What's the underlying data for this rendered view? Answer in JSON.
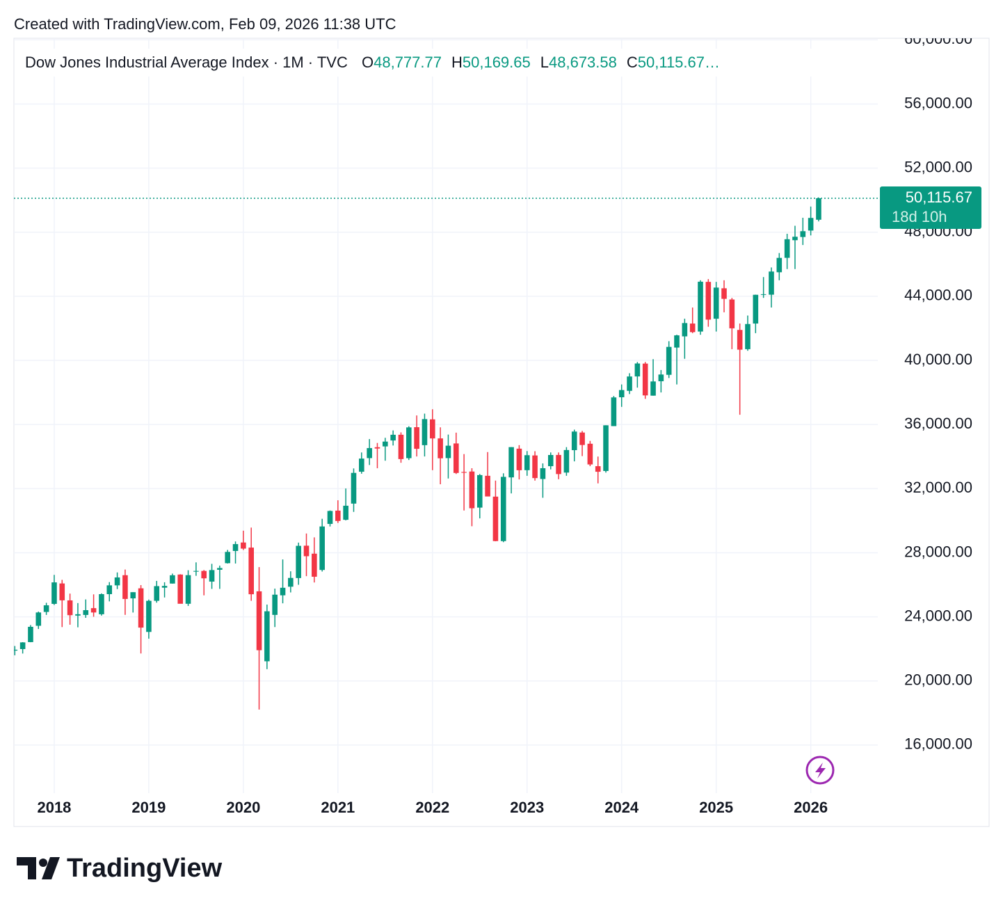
{
  "chart_data": {
    "type": "candlestick",
    "credit": "Created with TradingView.com, Feb 09, 2026 11:38 UTC",
    "title": "Dow Jones Industrial Average Index · 1M · TVC",
    "ohlc_legend": [
      {
        "prefix": "O",
        "value": "48,777.77"
      },
      {
        "prefix": "H",
        "value": "50,169.65"
      },
      {
        "prefix": "L",
        "value": "48,673.58"
      },
      {
        "prefix": "C",
        "value": "50,115.67…"
      }
    ],
    "categories": [
      null,
      null,
      null,
      null,
      null,
      "2018",
      null,
      null,
      null,
      null,
      null,
      null,
      null,
      null,
      null,
      null,
      null,
      "2019",
      null,
      null,
      null,
      null,
      null,
      null,
      null,
      null,
      null,
      null,
      null,
      "2020",
      null,
      null,
      null,
      null,
      null,
      null,
      null,
      null,
      null,
      null,
      null,
      "2021",
      null,
      null,
      null,
      null,
      null,
      null,
      null,
      null,
      null,
      null,
      null,
      "2022",
      null,
      null,
      null,
      null,
      null,
      null,
      null,
      null,
      null,
      null,
      null,
      "2023",
      null,
      null,
      null,
      null,
      null,
      null,
      null,
      null,
      null,
      null,
      null,
      "2024",
      null,
      null,
      null,
      null,
      null,
      null,
      null,
      null,
      null,
      null,
      null,
      "2025",
      null,
      null,
      null,
      null,
      null,
      null,
      null,
      null,
      null,
      null,
      null,
      "2026",
      null
    ],
    "series": [
      {
        "up_color": "#089981",
        "down_color": "#f23645",
        "open": [
          21891,
          21988,
          22423,
          23442,
          24305,
          24809,
          26083,
          25025,
          24076,
          24117,
          24542,
          24161,
          25415,
          25964,
          26598,
          25152,
          25779,
          23058,
          24999,
          25819,
          26076,
          26639,
          24815,
          26818,
          26864,
          26198,
          26937,
          27347,
          28109,
          28638,
          28320,
          25591,
          21227,
          24120,
          25342,
          25880,
          26420,
          28439,
          27941,
          26925,
          29798,
          30627,
          30055,
          31065,
          33054,
          33904,
          34584,
          34634,
          35003,
          35361,
          33900,
          35833,
          34711,
          36321,
          35133,
          33904,
          34818,
          33040,
          33067,
          30815,
          32800,
          31500,
          28725,
          32700,
          34493,
          33150,
          34070,
          32600,
          33400,
          34100,
          33000,
          34400,
          35500,
          34800,
          33400,
          33100,
          35900,
          37700,
          38100,
          39000,
          39800,
          37800,
          38700,
          39100,
          40800,
          41500,
          42300,
          41800,
          44900,
          42600,
          44500,
          43800,
          41900,
          40700,
          42300,
          44100,
          44100,
          45500,
          46400,
          47500,
          47700,
          48100,
          48777.77
        ],
        "high": [
          22180,
          22420,
          23485,
          24327,
          24876,
          26617,
          26307,
          25449,
          24858,
          25086,
          25403,
          25462,
          26167,
          26770,
          26951,
          25538,
          25980,
          25076,
          26242,
          26156,
          26696,
          26658,
          26907,
          27398,
          26919,
          27306,
          27196,
          28175,
          28702,
          29374,
          29568,
          27102,
          24765,
          25759,
          27580,
          26841,
          28630,
          29199,
          28958,
          30117,
          30637,
          31272,
          32009,
          33260,
          34256,
          35091,
          34849,
          35171,
          35631,
          35510,
          35892,
          36565,
          36679,
          36952,
          35824,
          35372,
          35492,
          34155,
          33272,
          32910,
          34281,
          32500,
          32955,
          34590,
          34712,
          34342,
          34334,
          33572,
          34257,
          34257,
          34588,
          35679,
          35600,
          34977,
          34000,
          35950,
          37778,
          38500,
          39200,
          39900,
          39900,
          40077,
          39400,
          41198,
          41600,
          42600,
          43300,
          45000,
          45073,
          44900,
          45000,
          43900,
          42300,
          42800,
          44100,
          45200,
          45800,
          46700,
          47900,
          48400,
          48900,
          49600,
          50169.65
        ],
        "low": [
          21600,
          21709,
          22416,
          23242,
          24118,
          24741,
          23360,
          23509,
          23345,
          23938,
          24006,
          24077,
          24965,
          25731,
          24122,
          24268,
          21713,
          22638,
          24883,
          25208,
          26072,
          24924,
          24680,
          26558,
          25340,
          25743,
          25744,
          27325,
          27325,
          28170,
          25000,
          18214,
          20735,
          23361,
          24843,
          25523,
          26000,
          26538,
          26143,
          26826,
          29638,
          29856,
          30017,
          30547,
          32930,
          33473,
          33271,
          33741,
          34690,
          33613,
          33785,
          34006,
          34006,
          33150,
          32272,
          32632,
          32913,
          30635,
          29653,
          30143,
          31765,
          28715,
          28660,
          31700,
          32573,
          32800,
          32500,
          31429,
          33200,
          32586,
          32800,
          33700,
          34029,
          33400,
          32327,
          33000,
          35900,
          37100,
          37900,
          38300,
          37600,
          37800,
          38000,
          38900,
          38500,
          40100,
          41700,
          41600,
          42100,
          41800,
          43000,
          40700,
          36612,
          40600,
          41700,
          43900,
          43300,
          45000,
          45700,
          45700,
          47200,
          47800,
          48673.58
        ],
        "close": [
          21948,
          22405,
          23377,
          24272,
          24719,
          26149,
          25029,
          24103,
          24163,
          24416,
          24271,
          25415,
          25965,
          26458,
          25116,
          25538,
          23327,
          24999,
          25916,
          25929,
          26593,
          24815,
          26600,
          26864,
          26403,
          26917,
          27046,
          28051,
          28538,
          28256,
          25409,
          21917,
          24346,
          25383,
          25813,
          26428,
          28430,
          27782,
          26502,
          29639,
          30606,
          29982,
          30932,
          32981,
          33874,
          34529,
          34502,
          34935,
          35360,
          33844,
          35820,
          34483,
          36338,
          35131,
          33893,
          34678,
          32977,
          32990,
          30775,
          32845,
          31510,
          28726,
          32733,
          34589,
          33147,
          34086,
          32657,
          33274,
          34098,
          32908,
          34408,
          35560,
          34722,
          33508,
          33052,
          35951,
          37690,
          38150,
          38996,
          39807,
          37816,
          38686,
          39119,
          40843,
          41563,
          42330,
          41763,
          44910,
          42544,
          44544,
          43841,
          42001,
          40669,
          42270,
          44094,
          44130,
          45544,
          46397,
          47562,
          47716,
          48063,
          48890,
          50115.67
        ]
      }
    ],
    "last_price": {
      "value": 50115.67,
      "label": "50,115.67"
    },
    "countdown": "18d 10h",
    "ylim": [
      13000,
      60100
    ],
    "yticks": [
      {
        "value": 16000,
        "label": "16,000.00"
      },
      {
        "value": 20000,
        "label": "20,000.00"
      },
      {
        "value": 24000,
        "label": "24,000.00"
      },
      {
        "value": 28000,
        "label": "28,000.00"
      },
      {
        "value": 32000,
        "label": "32,000.00"
      },
      {
        "value": 36000,
        "label": "36,000.00"
      },
      {
        "value": 40000,
        "label": "40,000.00"
      },
      {
        "value": 44000,
        "label": "44,000.00"
      },
      {
        "value": 48000,
        "label": "48,000.00"
      },
      {
        "value": 52000,
        "label": "52,000.00"
      },
      {
        "value": 56000,
        "label": "56,000.00"
      },
      {
        "value": 60000,
        "label": "60,000.00"
      }
    ],
    "grid": true,
    "brand": "TradingView"
  }
}
